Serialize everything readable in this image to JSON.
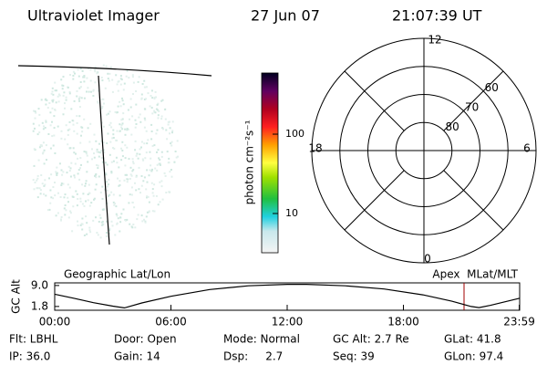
{
  "header": {
    "title": "Ultraviolet Imager",
    "date": "27 Jun 07",
    "time": "21:07:39 UT"
  },
  "colorbar": {
    "label": "photon cm⁻²s⁻¹",
    "log": true,
    "lim": [
      3.2,
      590
    ],
    "ticks": [
      10,
      100
    ]
  },
  "polar": {
    "rlim": [
      90,
      50
    ],
    "rings": [
      80,
      70,
      60
    ],
    "mlt_labels": [
      12,
      18,
      6,
      0
    ]
  },
  "chart_data": {
    "type": "line",
    "title": "Geographic Lat/Lon",
    "subtitle": "Apex  MLat/MLT",
    "y_label": "GC Alt",
    "x": [
      0,
      1,
      2,
      3,
      3.6,
      4.5,
      6,
      8,
      10,
      12,
      13,
      15,
      17,
      19,
      20.5,
      21.5,
      21.9,
      22.5,
      23.98
    ],
    "values": [
      6.0,
      4.6,
      3.1,
      1.9,
      1.3,
      3.0,
      5.3,
      7.6,
      8.9,
      9.4,
      9.4,
      8.9,
      7.8,
      5.8,
      3.6,
      1.8,
      1.4,
      2.2,
      4.6
    ],
    "color": "#000000",
    "marker_x": 21.13,
    "marker_color": "#a00000",
    "xlim": [
      0,
      24
    ],
    "ylim": [
      0.5,
      9.9
    ],
    "xticks": [
      {
        "value": 0,
        "label": "00:00"
      },
      {
        "value": 6,
        "label": "06:00"
      },
      {
        "value": 12,
        "label": "12:00"
      },
      {
        "value": 18,
        "label": "18:00"
      },
      {
        "value": 23.98,
        "label": "23:59"
      }
    ],
    "yticks": [
      {
        "value": 9,
        "label": "9.0"
      },
      1.8
    ]
  },
  "footer": {
    "rows": [
      [
        "Flt: LBHL",
        "Door: Open",
        "Mode: Normal",
        "GC Alt: 2.7 Re",
        "GLat: 41.8"
      ],
      [
        "IP: 36.0",
        "Gain: 14",
        "Dsp:     2.7",
        "Seq: 39",
        "GLon: 97.4"
      ]
    ]
  }
}
